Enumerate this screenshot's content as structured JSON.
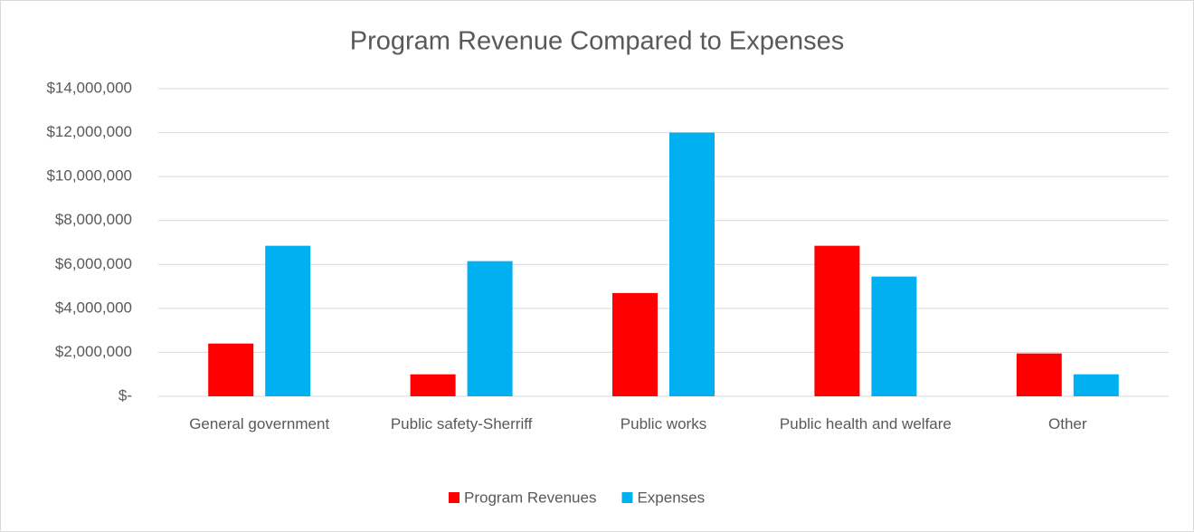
{
  "chart_data": {
    "type": "bar",
    "title": "Program Revenue Compared to Expenses",
    "categories": [
      "General government",
      "Public safety-Sherriff",
      "Public works",
      "Public health and welfare",
      "Other"
    ],
    "series": [
      {
        "name": "Program Revenues",
        "color": "#ff0000",
        "values": [
          2400000,
          1000000,
          4700000,
          6850000,
          1950000
        ]
      },
      {
        "name": "Expenses",
        "color": "#00b0f0",
        "values": [
          6850000,
          6150000,
          12000000,
          5450000,
          1000000
        ]
      }
    ],
    "ylim": [
      0,
      14000000
    ],
    "yticks": [
      {
        "value": 0,
        "label": "$-"
      },
      {
        "value": 2000000,
        "label": "$2,000,000"
      },
      {
        "value": 4000000,
        "label": "$4,000,000"
      },
      {
        "value": 6000000,
        "label": "$6,000,000"
      },
      {
        "value": 8000000,
        "label": "$8,000,000"
      },
      {
        "value": 10000000,
        "label": "$10,000,000"
      },
      {
        "value": 12000000,
        "label": "$12,000,000"
      },
      {
        "value": 14000000,
        "label": "$14,000,000"
      }
    ],
    "grid": true,
    "legend": "bottom"
  }
}
